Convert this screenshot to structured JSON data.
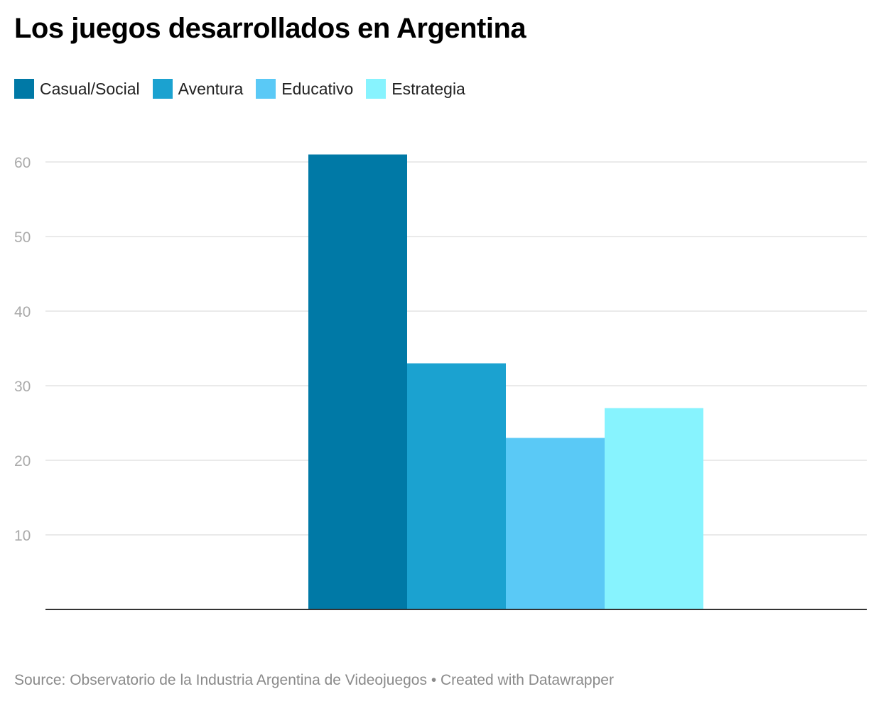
{
  "title": "Los juegos desarrollados en Argentina",
  "footer": {
    "text": "Source: Observatorio de la Industria Argentina de Videojuegos • Created with Datawrapper"
  },
  "chart_data": {
    "type": "bar",
    "title": "Los juegos desarrollados en Argentina",
    "xlabel": "",
    "ylabel": "",
    "ylim": [
      0,
      65
    ],
    "yticks": [
      10,
      20,
      30,
      40,
      50,
      60
    ],
    "grid": true,
    "legend_position": "top-left",
    "series": [
      {
        "name": "Casual/Social",
        "value": 61,
        "color": "#0079a6"
      },
      {
        "name": "Aventura",
        "value": 33,
        "color": "#1ba2d0"
      },
      {
        "name": "Educativo",
        "value": 23,
        "color": "#5ac9f6"
      },
      {
        "name": "Estrategia",
        "value": 27,
        "color": "#87f3fe"
      }
    ]
  }
}
